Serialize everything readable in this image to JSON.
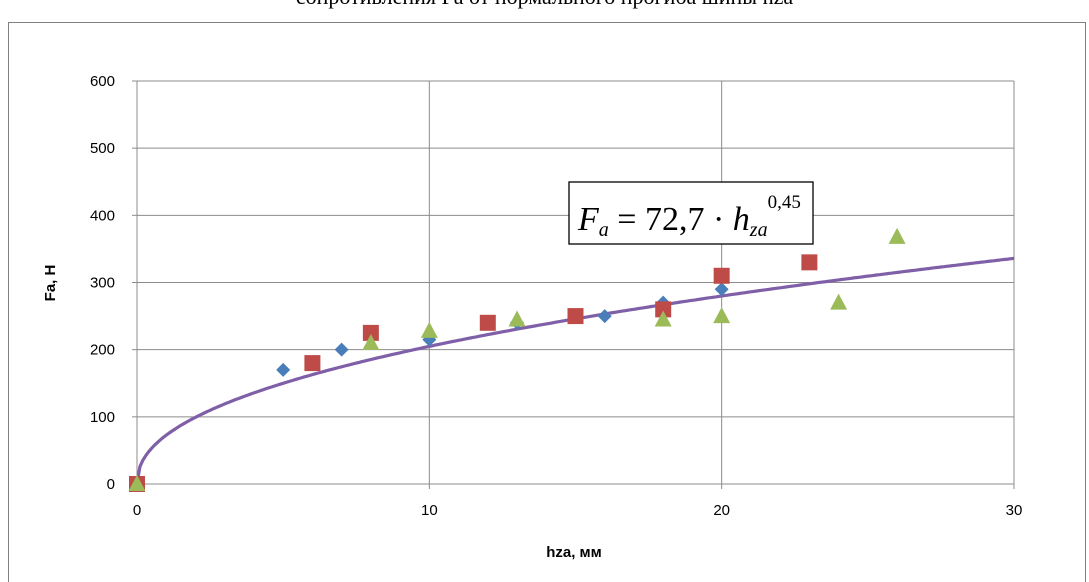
{
  "caption": {
    "text": "сопротивления Fa от нормального прогиба шины hza"
  },
  "chart_data": {
    "type": "scatter",
    "xlabel": "hza, мм",
    "ylabel": "Fa, Н",
    "xlim": [
      0,
      30
    ],
    "ylim": [
      0,
      600
    ],
    "x_ticks": [
      "0",
      "10",
      "20",
      "30"
    ],
    "y_ticks": [
      "0",
      "100",
      "200",
      "300",
      "400",
      "500",
      "600"
    ],
    "grid": true,
    "legend": "none",
    "series": [
      {
        "marker": "diamond",
        "color": "#4a7ebb",
        "points": [
          [
            0,
            0
          ],
          [
            5,
            170
          ],
          [
            7,
            200
          ],
          [
            10,
            215
          ],
          [
            13,
            240
          ],
          [
            16,
            250
          ],
          [
            18,
            270
          ],
          [
            20,
            290
          ]
        ]
      },
      {
        "marker": "square",
        "color": "#be4b48",
        "points": [
          [
            0,
            0
          ],
          [
            6,
            180
          ],
          [
            8,
            225
          ],
          [
            12,
            240
          ],
          [
            15,
            250
          ],
          [
            18,
            260
          ],
          [
            20,
            310
          ],
          [
            23,
            330
          ]
        ]
      },
      {
        "marker": "triangle",
        "color": "#9bbb59",
        "points": [
          [
            0,
            0
          ],
          [
            8,
            210
          ],
          [
            10,
            228
          ],
          [
            13,
            245
          ],
          [
            18,
            245
          ],
          [
            20,
            250
          ],
          [
            24,
            270
          ],
          [
            26,
            368
          ]
        ]
      }
    ],
    "trendline": {
      "color": "#7f60a8",
      "coefficient": 72.7,
      "exponent": 0.45,
      "equation": {
        "lhs": "F",
        "lhs_sub": "a",
        "mid": " = 72,7 · ",
        "rhs": "h",
        "rhs_sub": "za",
        "power": "0,45"
      }
    }
  }
}
